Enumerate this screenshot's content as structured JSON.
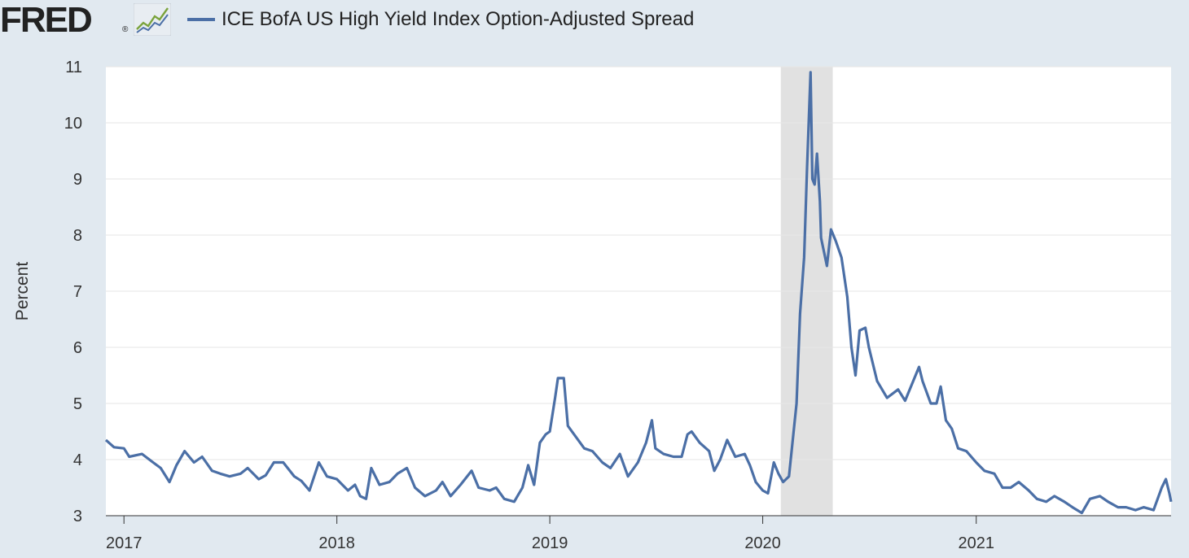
{
  "header": {
    "logo_text": "FRED",
    "logo_registered": "®",
    "legend_label": "ICE BofA US High Yield Index Option-Adjusted Spread"
  },
  "colors": {
    "series": "#4b6fa6",
    "background": "#e1e9f0",
    "plot_background": "#ffffff",
    "recession_shade": "#e1e1e1",
    "grid": "#e6e6e6"
  },
  "icons": [
    "fred-logo-graph-icon"
  ],
  "chart_data": {
    "type": "line",
    "title": "",
    "xlabel": "",
    "ylabel": "Percent",
    "ylim": [
      3,
      11
    ],
    "yticks": [
      3,
      4,
      5,
      6,
      7,
      8,
      9,
      10,
      11
    ],
    "xlim": [
      "2016-12-01",
      "2021-12-01"
    ],
    "xticks": [
      {
        "label": "2017",
        "date": "2017-01-01"
      },
      {
        "label": "2018",
        "date": "2018-01-01"
      },
      {
        "label": "2019",
        "date": "2019-01-01"
      },
      {
        "label": "2020",
        "date": "2020-01-01"
      },
      {
        "label": "2021",
        "date": "2021-01-01"
      }
    ],
    "grid": true,
    "legend_position": "top",
    "recession_shading": [
      {
        "start": "2020-02-01",
        "end": "2020-04-30"
      }
    ],
    "series": [
      {
        "name": "ICE BofA US High Yield Index Option-Adjusted Spread",
        "points": [
          [
            "2016-12-01",
            4.35
          ],
          [
            "2016-12-15",
            4.22
          ],
          [
            "2017-01-01",
            4.2
          ],
          [
            "2017-01-10",
            4.05
          ],
          [
            "2017-02-01",
            4.1
          ],
          [
            "2017-02-20",
            3.95
          ],
          [
            "2017-03-05",
            3.85
          ],
          [
            "2017-03-20",
            3.6
          ],
          [
            "2017-04-01",
            3.9
          ],
          [
            "2017-04-15",
            4.15
          ],
          [
            "2017-05-01",
            3.95
          ],
          [
            "2017-05-15",
            4.05
          ],
          [
            "2017-06-01",
            3.8
          ],
          [
            "2017-06-15",
            3.75
          ],
          [
            "2017-07-01",
            3.7
          ],
          [
            "2017-07-20",
            3.75
          ],
          [
            "2017-08-01",
            3.85
          ],
          [
            "2017-08-20",
            3.65
          ],
          [
            "2017-09-01",
            3.72
          ],
          [
            "2017-09-15",
            3.95
          ],
          [
            "2017-10-01",
            3.95
          ],
          [
            "2017-10-20",
            3.7
          ],
          [
            "2017-11-01",
            3.62
          ],
          [
            "2017-11-15",
            3.45
          ],
          [
            "2017-12-01",
            3.95
          ],
          [
            "2017-12-15",
            3.7
          ],
          [
            "2018-01-01",
            3.65
          ],
          [
            "2018-01-20",
            3.45
          ],
          [
            "2018-02-01",
            3.55
          ],
          [
            "2018-02-10",
            3.35
          ],
          [
            "2018-02-20",
            3.3
          ],
          [
            "2018-03-01",
            3.85
          ],
          [
            "2018-03-15",
            3.55
          ],
          [
            "2018-04-01",
            3.6
          ],
          [
            "2018-04-15",
            3.75
          ],
          [
            "2018-05-01",
            3.85
          ],
          [
            "2018-05-15",
            3.5
          ],
          [
            "2018-06-01",
            3.35
          ],
          [
            "2018-06-20",
            3.45
          ],
          [
            "2018-07-01",
            3.6
          ],
          [
            "2018-07-15",
            3.35
          ],
          [
            "2018-08-01",
            3.55
          ],
          [
            "2018-08-20",
            3.8
          ],
          [
            "2018-09-01",
            3.5
          ],
          [
            "2018-09-20",
            3.45
          ],
          [
            "2018-10-01",
            3.5
          ],
          [
            "2018-10-15",
            3.3
          ],
          [
            "2018-11-01",
            3.25
          ],
          [
            "2018-11-15",
            3.5
          ],
          [
            "2018-11-25",
            3.9
          ],
          [
            "2018-12-05",
            3.55
          ],
          [
            "2018-12-15",
            4.3
          ],
          [
            "2018-12-25",
            4.45
          ],
          [
            "2019-01-01",
            4.5
          ],
          [
            "2019-01-10",
            5.1
          ],
          [
            "2019-01-15",
            5.45
          ],
          [
            "2019-01-25",
            5.45
          ],
          [
            "2019-02-01",
            4.6
          ],
          [
            "2019-02-15",
            4.4
          ],
          [
            "2019-03-01",
            4.2
          ],
          [
            "2019-03-15",
            4.15
          ],
          [
            "2019-04-01",
            3.95
          ],
          [
            "2019-04-15",
            3.85
          ],
          [
            "2019-05-01",
            4.1
          ],
          [
            "2019-05-15",
            3.7
          ],
          [
            "2019-06-01",
            3.95
          ],
          [
            "2019-06-15",
            4.3
          ],
          [
            "2019-06-25",
            4.7
          ],
          [
            "2019-07-01",
            4.2
          ],
          [
            "2019-07-15",
            4.1
          ],
          [
            "2019-08-01",
            4.05
          ],
          [
            "2019-08-15",
            4.05
          ],
          [
            "2019-08-25",
            4.45
          ],
          [
            "2019-09-01",
            4.5
          ],
          [
            "2019-09-15",
            4.3
          ],
          [
            "2019-10-01",
            4.15
          ],
          [
            "2019-10-10",
            3.8
          ],
          [
            "2019-10-20",
            4.0
          ],
          [
            "2019-11-01",
            4.35
          ],
          [
            "2019-11-15",
            4.05
          ],
          [
            "2019-12-01",
            4.1
          ],
          [
            "2019-12-10",
            3.9
          ],
          [
            "2019-12-20",
            3.6
          ],
          [
            "2020-01-01",
            3.45
          ],
          [
            "2020-01-10",
            3.4
          ],
          [
            "2020-01-20",
            3.95
          ],
          [
            "2020-01-28",
            3.75
          ],
          [
            "2020-02-05",
            3.6
          ],
          [
            "2020-02-15",
            3.7
          ],
          [
            "2020-02-22",
            4.4
          ],
          [
            "2020-02-28",
            5.0
          ],
          [
            "2020-03-05",
            6.6
          ],
          [
            "2020-03-12",
            7.6
          ],
          [
            "2020-03-17",
            9.2
          ],
          [
            "2020-03-23",
            10.9
          ],
          [
            "2020-03-26",
            9.0
          ],
          [
            "2020-03-30",
            8.9
          ],
          [
            "2020-04-03",
            9.45
          ],
          [
            "2020-04-08",
            8.6
          ],
          [
            "2020-04-10",
            7.95
          ],
          [
            "2020-04-15",
            7.7
          ],
          [
            "2020-04-20",
            7.45
          ],
          [
            "2020-04-27",
            8.1
          ],
          [
            "2020-05-05",
            7.9
          ],
          [
            "2020-05-15",
            7.6
          ],
          [
            "2020-05-25",
            6.9
          ],
          [
            "2020-06-01",
            6.0
          ],
          [
            "2020-06-08",
            5.5
          ],
          [
            "2020-06-15",
            6.3
          ],
          [
            "2020-06-25",
            6.35
          ],
          [
            "2020-07-01",
            6.0
          ],
          [
            "2020-07-15",
            5.4
          ],
          [
            "2020-08-01",
            5.1
          ],
          [
            "2020-08-20",
            5.25
          ],
          [
            "2020-09-01",
            5.05
          ],
          [
            "2020-09-15",
            5.4
          ],
          [
            "2020-09-25",
            5.65
          ],
          [
            "2020-10-01",
            5.4
          ],
          [
            "2020-10-15",
            5.0
          ],
          [
            "2020-10-25",
            5.0
          ],
          [
            "2020-11-01",
            5.3
          ],
          [
            "2020-11-10",
            4.7
          ],
          [
            "2020-11-20",
            4.55
          ],
          [
            "2020-12-01",
            4.2
          ],
          [
            "2020-12-15",
            4.15
          ],
          [
            "2021-01-01",
            3.95
          ],
          [
            "2021-01-15",
            3.8
          ],
          [
            "2021-02-01",
            3.75
          ],
          [
            "2021-02-15",
            3.5
          ],
          [
            "2021-03-01",
            3.5
          ],
          [
            "2021-03-15",
            3.6
          ],
          [
            "2021-04-01",
            3.45
          ],
          [
            "2021-04-15",
            3.3
          ],
          [
            "2021-05-01",
            3.25
          ],
          [
            "2021-05-15",
            3.35
          ],
          [
            "2021-06-01",
            3.25
          ],
          [
            "2021-06-15",
            3.15
          ],
          [
            "2021-07-01",
            3.05
          ],
          [
            "2021-07-15",
            3.3
          ],
          [
            "2021-08-01",
            3.35
          ],
          [
            "2021-08-15",
            3.25
          ],
          [
            "2021-09-01",
            3.15
          ],
          [
            "2021-09-15",
            3.15
          ],
          [
            "2021-10-01",
            3.1
          ],
          [
            "2021-10-15",
            3.15
          ],
          [
            "2021-11-01",
            3.1
          ],
          [
            "2021-11-15",
            3.5
          ],
          [
            "2021-11-22",
            3.65
          ],
          [
            "2021-11-28",
            3.4
          ],
          [
            "2021-12-01",
            3.25
          ]
        ]
      }
    ]
  }
}
